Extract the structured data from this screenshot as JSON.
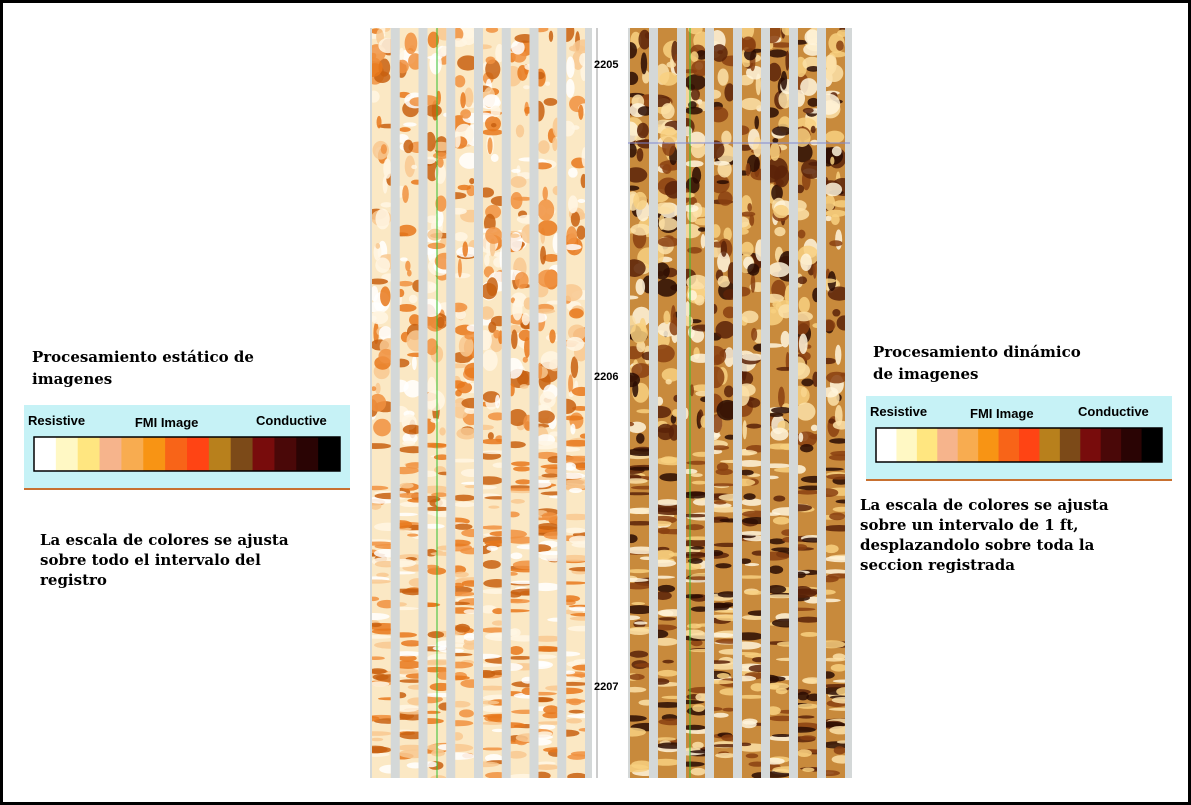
{
  "depth_labels": [
    "2205",
    "2206",
    "2207"
  ],
  "left": {
    "title": [
      "Procesamiento estático de",
      "imagenes"
    ],
    "legend": {
      "resistive": "Resistive",
      "title": "FMI Image",
      "conductive": "Conductive",
      "colors": [
        "#ffffff",
        "#fff8c4",
        "#ffe680",
        "#f6b48c",
        "#f8ac50",
        "#f89414",
        "#f86418",
        "#ff4414",
        "#b8801c",
        "#7c4a18",
        "#780c0c",
        "#4a0808",
        "#2a0404",
        "#000000"
      ]
    },
    "note": [
      "La escala de colores se ajusta",
      "sobre todo el intervalo del",
      "registro"
    ]
  },
  "right": {
    "title": [
      "Procesamiento dinámico",
      "de imagenes"
    ],
    "legend": {
      "resistive": "Resistive",
      "title": "FMI Image",
      "conductive": "Conductive",
      "colors": [
        "#ffffff",
        "#fff8c4",
        "#ffe680",
        "#f6b48c",
        "#f8ac50",
        "#f89414",
        "#f86418",
        "#ff4414",
        "#b8801c",
        "#7c4a18",
        "#780c0c",
        "#4a0808",
        "#2a0404",
        "#000000"
      ]
    },
    "note": [
      "La escala de colores se ajusta",
      "sobre un intervalo de 1 ft,",
      "desplazandolo sobre toda la",
      "seccion registrada"
    ]
  }
}
